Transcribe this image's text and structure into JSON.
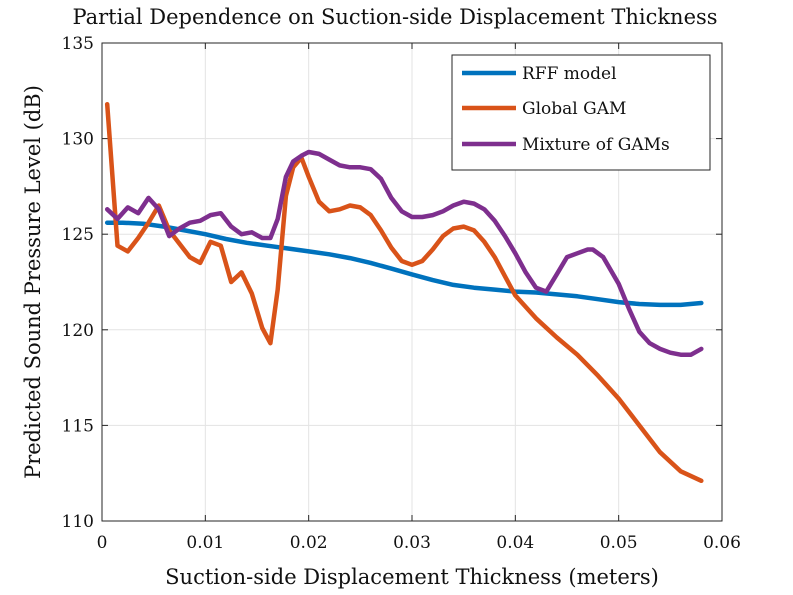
{
  "chart_data": {
    "type": "line",
    "title": "Partial Dependence on Suction-side Displacement Thickness",
    "xlabel": "Suction-side Displacement Thickness (meters)",
    "ylabel": "Predicted Sound Pressure Level (dB)",
    "xlim": [
      0,
      0.06
    ],
    "ylim": [
      110,
      135
    ],
    "xticks": [
      0,
      0.01,
      0.02,
      0.03,
      0.04,
      0.05,
      0.06
    ],
    "xtick_labels": [
      "0",
      "0.01",
      "0.02",
      "0.03",
      "0.04",
      "0.05",
      "0.06"
    ],
    "yticks": [
      110,
      115,
      120,
      125,
      130,
      135
    ],
    "ytick_labels": [
      "110",
      "115",
      "120",
      "125",
      "130",
      "135"
    ],
    "grid": true,
    "legend": "top-right",
    "series": [
      {
        "name": "RFF model",
        "color": "#0072BD",
        "x": [
          0.0005,
          0.002,
          0.004,
          0.006,
          0.008,
          0.01,
          0.012,
          0.014,
          0.016,
          0.018,
          0.02,
          0.022,
          0.024,
          0.026,
          0.028,
          0.03,
          0.032,
          0.034,
          0.036,
          0.038,
          0.04,
          0.042,
          0.044,
          0.046,
          0.048,
          0.05,
          0.052,
          0.054,
          0.056,
          0.058
        ],
        "y": [
          125.6,
          125.6,
          125.55,
          125.4,
          125.2,
          125.0,
          124.75,
          124.55,
          124.4,
          124.25,
          124.1,
          123.95,
          123.75,
          123.5,
          123.2,
          122.9,
          122.6,
          122.35,
          122.2,
          122.1,
          122.0,
          121.95,
          121.85,
          121.75,
          121.6,
          121.45,
          121.35,
          121.3,
          121.3,
          121.4
        ]
      },
      {
        "name": "Global GAM",
        "color": "#D95319",
        "x": [
          0.0005,
          0.0015,
          0.0025,
          0.0035,
          0.0045,
          0.0055,
          0.0065,
          0.0075,
          0.0085,
          0.0095,
          0.0105,
          0.0115,
          0.0125,
          0.0135,
          0.0145,
          0.0155,
          0.0163,
          0.017,
          0.0178,
          0.0185,
          0.0193,
          0.02,
          0.021,
          0.022,
          0.023,
          0.024,
          0.025,
          0.026,
          0.027,
          0.028,
          0.029,
          0.03,
          0.031,
          0.032,
          0.033,
          0.034,
          0.035,
          0.036,
          0.037,
          0.038,
          0.039,
          0.04,
          0.042,
          0.044,
          0.046,
          0.048,
          0.05,
          0.052,
          0.054,
          0.056,
          0.058
        ],
        "y": [
          131.8,
          124.4,
          124.1,
          124.8,
          125.6,
          126.5,
          125.2,
          124.5,
          123.8,
          123.5,
          124.6,
          124.4,
          122.5,
          123.0,
          121.9,
          120.1,
          119.3,
          122.1,
          127.0,
          128.5,
          129.0,
          128.0,
          126.7,
          126.2,
          126.3,
          126.5,
          126.4,
          126.0,
          125.2,
          124.3,
          123.6,
          123.4,
          123.6,
          124.2,
          124.9,
          125.3,
          125.4,
          125.2,
          124.6,
          123.8,
          122.8,
          121.8,
          120.6,
          119.6,
          118.7,
          117.6,
          116.4,
          115.0,
          113.6,
          112.6,
          112.1
        ]
      },
      {
        "name": "Mixture of GAMs",
        "color": "#7E2F8E",
        "x": [
          0.0005,
          0.0015,
          0.0025,
          0.0035,
          0.0045,
          0.0055,
          0.0065,
          0.0075,
          0.0085,
          0.0095,
          0.0105,
          0.0115,
          0.0125,
          0.0135,
          0.0145,
          0.0155,
          0.0163,
          0.017,
          0.0178,
          0.0185,
          0.0193,
          0.02,
          0.021,
          0.022,
          0.023,
          0.024,
          0.025,
          0.026,
          0.027,
          0.028,
          0.029,
          0.03,
          0.031,
          0.032,
          0.033,
          0.034,
          0.035,
          0.036,
          0.037,
          0.038,
          0.039,
          0.04,
          0.041,
          0.042,
          0.043,
          0.044,
          0.045,
          0.046,
          0.047,
          0.0475,
          0.0485,
          0.05,
          0.051,
          0.052,
          0.053,
          0.054,
          0.055,
          0.056,
          0.057,
          0.058
        ],
        "y": [
          126.3,
          125.8,
          126.4,
          126.1,
          126.9,
          126.3,
          124.9,
          125.3,
          125.6,
          125.7,
          126.0,
          126.1,
          125.4,
          125.0,
          125.1,
          124.8,
          124.8,
          125.8,
          128.0,
          128.8,
          129.1,
          129.3,
          129.2,
          128.9,
          128.6,
          128.5,
          128.5,
          128.4,
          127.9,
          126.9,
          126.2,
          125.9,
          125.9,
          126.0,
          126.2,
          126.5,
          126.7,
          126.6,
          126.3,
          125.7,
          124.9,
          124.0,
          123.0,
          122.2,
          122.0,
          122.9,
          123.8,
          124.0,
          124.2,
          124.2,
          123.8,
          122.4,
          121.1,
          119.9,
          119.3,
          119.0,
          118.8,
          118.7,
          118.7,
          119.0
        ]
      }
    ]
  }
}
